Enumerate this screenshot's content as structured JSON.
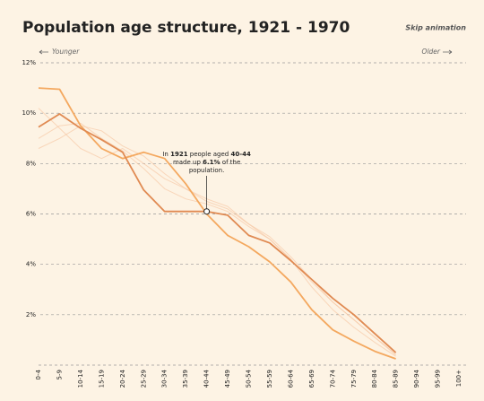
{
  "chart_data": {
    "type": "line",
    "title": "Population age structure, 1921 - 1970",
    "button": "Skip animation",
    "left_label": "Younger",
    "right_label": "Older",
    "annotation": [
      "In ",
      "1921",
      " people aged ",
      "40-44",
      "made up ",
      "6.1%",
      " of the",
      "population."
    ],
    "categories": [
      "0-4",
      "5-9",
      "10-14",
      "15-19",
      "20-24",
      "25-29",
      "30-34",
      "35-39",
      "40-44",
      "45-49",
      "50-54",
      "55-59",
      "60-64",
      "65-69",
      "70-74",
      "75-79",
      "80-84",
      "85-89",
      "90-94",
      "95-99",
      "100+"
    ],
    "ylim": [
      0,
      12
    ],
    "yticks": [
      {
        "value": 2,
        "label": "2%"
      },
      {
        "value": 4,
        "label": "4%"
      },
      {
        "value": 6,
        "label": "6%"
      },
      {
        "value": 8,
        "label": "8%"
      },
      {
        "value": 10,
        "label": "10%"
      },
      {
        "value": 12,
        "label": "12%"
      }
    ],
    "grid": true,
    "series": [
      {
        "color": "#e08a52",
        "values": [
          9.45,
          9.97,
          9.4,
          8.95,
          8.45,
          6.95,
          6.1,
          6.1,
          6.1,
          5.95,
          5.15,
          4.85,
          4.15,
          3.4,
          2.65,
          2.0,
          1.25,
          0.5,
          null,
          null,
          null
        ]
      },
      {
        "color": "#f4a85f",
        "values": [
          11.0,
          10.95,
          9.5,
          8.6,
          8.2,
          8.45,
          8.2,
          7.2,
          6.0,
          5.15,
          4.7,
          4.1,
          3.3,
          2.2,
          1.4,
          0.95,
          0.55,
          0.25,
          null,
          null,
          null
        ]
      }
    ],
    "background_series": [
      {
        "color": "#f6c9a6",
        "values": [
          9.0,
          9.5,
          9.6,
          9.0,
          8.5,
          7.8,
          7.0,
          6.6,
          6.4,
          6.1,
          5.5,
          5.0,
          4.2,
          3.3,
          2.5,
          1.8,
          1.1,
          0.45,
          null,
          null,
          null
        ]
      },
      {
        "color": "#f6c9a6",
        "values": [
          8.6,
          9.0,
          9.5,
          9.3,
          8.7,
          8.3,
          7.6,
          7.0,
          6.5,
          6.2,
          5.6,
          5.1,
          4.3,
          3.4,
          2.5,
          1.8,
          1.1,
          0.4,
          null,
          null,
          null
        ]
      },
      {
        "color": "#f6c9a6",
        "values": [
          10.2,
          9.4,
          8.6,
          8.2,
          8.6,
          8.0,
          7.4,
          7.0,
          6.6,
          6.3,
          5.6,
          5.0,
          4.2,
          3.1,
          2.2,
          1.5,
          0.9,
          0.35,
          null,
          null,
          null
        ]
      }
    ],
    "highlight": {
      "series": 0,
      "index": 8
    }
  }
}
